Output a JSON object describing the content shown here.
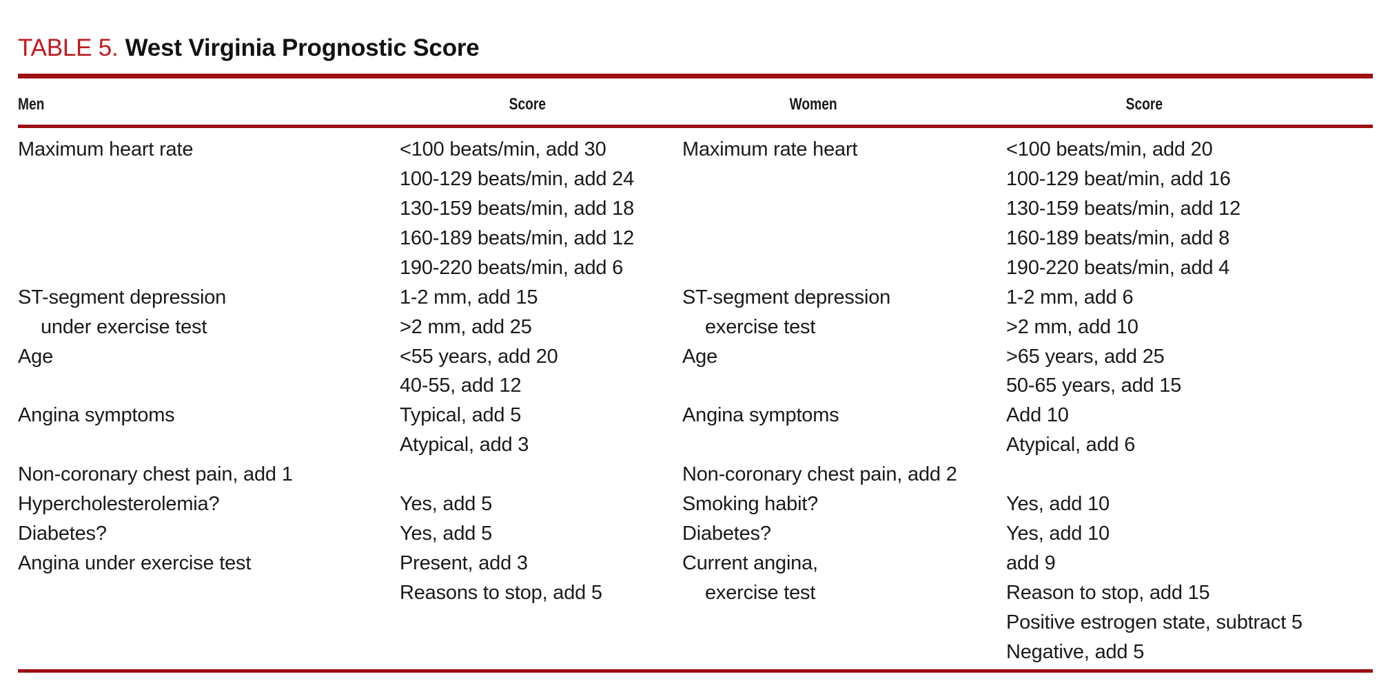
{
  "title": {
    "label": "TABLE 5.",
    "text": "West Virginia Prognostic Score"
  },
  "colors": {
    "accent_red": "#bf1b20",
    "rule_red": "#9d0f14",
    "text": "#1a1a1a"
  },
  "table": {
    "columns": [
      "Men",
      "Score",
      "Women",
      "Score"
    ],
    "rows": [
      {
        "men": "Maximum heart rate",
        "men_score": "<100 beats/min, add 30",
        "women": "Maximum rate heart",
        "women_score": "<100 beats/min, add 20"
      },
      {
        "men": "",
        "men_score": "100-129 beats/min, add 24",
        "women": "",
        "women_score": "100-129 beat/min, add 16"
      },
      {
        "men": "",
        "men_score": "130-159 beats/min, add 18",
        "women": "",
        "women_score": "130-159 beats/min, add 12"
      },
      {
        "men": "",
        "men_score": "160-189 beats/min, add 12",
        "women": "",
        "women_score": "160-189 beats/min, add 8"
      },
      {
        "men": "",
        "men_score": "190-220 beats/min, add 6",
        "women": "",
        "women_score": "190-220 beats/min, add 4"
      },
      {
        "men": "ST-segment depression",
        "men_score": "1-2 mm, add 15",
        "women": "ST-segment depression",
        "women_score": "1-2 mm, add 6"
      },
      {
        "men": "under exercise test",
        "men_indent": true,
        "men_score": ">2 mm, add 25",
        "women": "exercise test",
        "women_indent": true,
        "women_score": ">2 mm, add 10"
      },
      {
        "men": "Age",
        "men_score": "<55 years, add 20",
        "women": "Age",
        "women_score": ">65 years, add 25"
      },
      {
        "men": "",
        "men_score": "40-55, add 12",
        "women": "",
        "women_score": "50-65 years, add 15"
      },
      {
        "men": "Angina symptoms",
        "men_score": "Typical, add 5",
        "women": "Angina symptoms",
        "women_score": "Add 10"
      },
      {
        "men": "",
        "men_score": "Atypical, add 3",
        "women": "",
        "women_score": "Atypical, add 6"
      },
      {
        "men": "Non-coronary chest pain, add 1",
        "men_score": "",
        "women": "Non-coronary chest pain, add 2",
        "women_score": ""
      },
      {
        "men": "Hypercholesterolemia?",
        "men_score": "Yes, add 5",
        "women": "Smoking habit?",
        "women_score": "Yes, add 10"
      },
      {
        "men": "Diabetes?",
        "men_score": "Yes, add 5",
        "women": "Diabetes?",
        "women_score": "Yes, add 10"
      },
      {
        "men": "Angina under exercise test",
        "men_score": "Present, add 3",
        "women": "Current angina,",
        "women_score": "add 9"
      },
      {
        "men": "",
        "men_score": "Reasons to stop, add 5",
        "women": "exercise test",
        "women_indent": true,
        "women_score": "Reason to stop, add 15"
      },
      {
        "men": "",
        "men_score": "",
        "women": "",
        "women_score": "Positive estrogen state, subtract 5"
      },
      {
        "men": "",
        "men_score": "",
        "women": "",
        "women_score": "Negative, add 5"
      }
    ]
  }
}
